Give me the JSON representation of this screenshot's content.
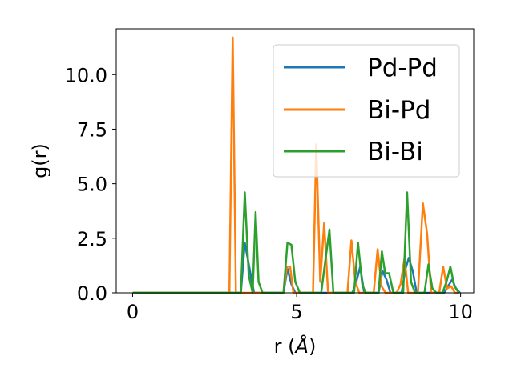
{
  "chart_data": {
    "type": "line",
    "title": "",
    "xlabel_prefix": "r (",
    "xlabel_unit": "Å",
    "xlabel_suffix": ")",
    "ylabel": "g(r)",
    "xlim": [
      -0.5,
      10.4
    ],
    "ylim": [
      0,
      12.1
    ],
    "xticks": [
      0,
      5,
      10
    ],
    "xtick_labels": [
      "0",
      "5",
      "10"
    ],
    "yticks": [
      0.0,
      2.5,
      5.0,
      7.5,
      10.0
    ],
    "ytick_labels": [
      "0.0",
      "2.5",
      "5.0",
      "7.5",
      "10.0"
    ],
    "grid": false,
    "legend_position": "top-right",
    "series": [
      {
        "name": "Pd-Pd",
        "color": "#1f77b4",
        "x": [
          0.0,
          3.3,
          3.42,
          3.58,
          3.7,
          4.6,
          4.72,
          4.84,
          4.96,
          5.2,
          6.7,
          6.82,
          6.94,
          7.06,
          7.5,
          7.62,
          7.74,
          7.86,
          8.2,
          8.32,
          8.42,
          8.54,
          8.66,
          9.5,
          9.62,
          9.74,
          9.86,
          9.98
        ],
        "y": [
          0,
          0,
          2.3,
          1.0,
          0,
          0,
          1.1,
          0.4,
          0,
          0,
          0,
          0.5,
          1.2,
          0,
          0,
          1.0,
          0.6,
          0,
          0,
          1.1,
          1.6,
          1.0,
          0,
          0,
          0.3,
          0.6,
          0.2,
          0
        ]
      },
      {
        "name": "Bi-Pd",
        "color": "#ff7f0e",
        "x": [
          0.0,
          2.95,
          3.05,
          3.15,
          4.6,
          4.7,
          4.8,
          4.9,
          5.5,
          5.6,
          5.72,
          5.84,
          5.96,
          6.1,
          6.55,
          6.67,
          6.79,
          6.91,
          7.35,
          7.47,
          7.59,
          7.71,
          8.05,
          8.17,
          8.29,
          8.4,
          8.7,
          8.85,
          8.98,
          9.1,
          9.35,
          9.47,
          9.59,
          9.71,
          9.83,
          9.95
        ],
        "y": [
          0,
          0,
          11.7,
          0,
          0,
          1.2,
          1.2,
          0,
          0,
          6.8,
          0.5,
          3.2,
          0,
          0,
          0,
          2.4,
          0.5,
          0,
          0,
          2.0,
          0.3,
          0,
          0,
          0.4,
          1.6,
          0,
          0,
          4.1,
          2.7,
          0,
          0,
          1.2,
          0.2,
          0.3,
          0,
          0
        ]
      },
      {
        "name": "Bi-Bi",
        "color": "#2ca02c",
        "x": [
          0.0,
          3.3,
          3.42,
          3.54,
          3.66,
          3.75,
          3.84,
          3.96,
          4.6,
          4.72,
          4.84,
          4.96,
          5.1,
          5.75,
          5.87,
          6.0,
          6.12,
          6.3,
          6.75,
          6.87,
          7.0,
          7.1,
          7.5,
          7.6,
          7.7,
          7.82,
          7.95,
          8.25,
          8.37,
          8.49,
          8.61,
          8.9,
          9.02,
          9.14,
          9.26,
          9.45,
          9.57,
          9.69,
          9.81,
          9.95
        ],
        "y": [
          0,
          0,
          4.6,
          0.8,
          0,
          3.7,
          0.5,
          0,
          0,
          2.3,
          2.2,
          0.5,
          0,
          0,
          1.4,
          2.9,
          0,
          0,
          0,
          2.3,
          0.4,
          0,
          0,
          1.9,
          0.9,
          0.9,
          0,
          0,
          4.6,
          0.5,
          0,
          0,
          1.3,
          0.2,
          0,
          0,
          0.5,
          1.2,
          0.3,
          0
        ]
      }
    ]
  }
}
